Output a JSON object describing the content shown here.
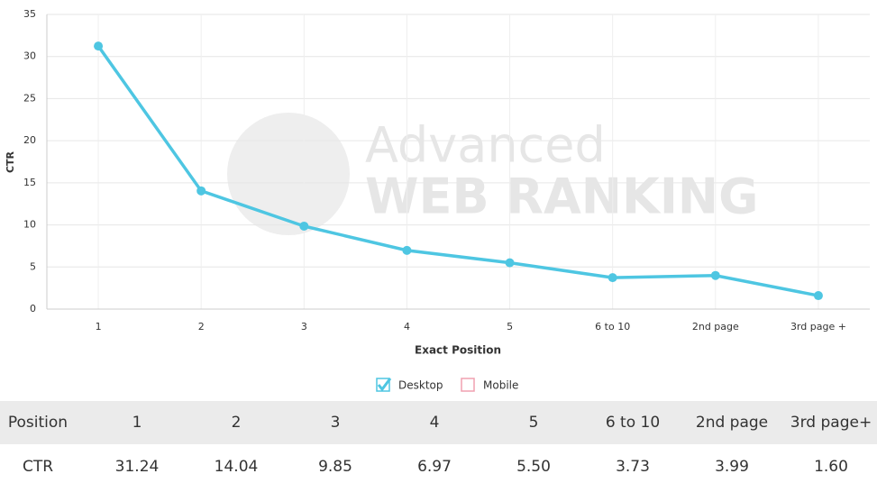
{
  "chart_data": {
    "type": "line",
    "y_label": "CTR",
    "x_label": "Exact Position",
    "watermark": [
      "Advanced",
      "WEB RANKING"
    ],
    "categories": [
      "1",
      "2",
      "3",
      "4",
      "5",
      "6 to 10",
      "2nd page",
      "3rd page +"
    ],
    "series": [
      {
        "name": "Desktop",
        "color": "#4ec6e2",
        "visible": true,
        "values": [
          31.24,
          14.04,
          9.85,
          6.97,
          5.5,
          3.73,
          3.99,
          1.6
        ],
        "value_labels": [
          "31.24",
          "14.04",
          "9.85",
          "6.97",
          "5.50",
          "3.73",
          "3.99",
          "1.60"
        ]
      },
      {
        "name": "Mobile",
        "color": "#f0a0b0",
        "visible": false
      }
    ],
    "ylim": [
      0,
      35
    ],
    "yticks": [
      0,
      5,
      10,
      15,
      20,
      25,
      30,
      35
    ],
    "grid": true
  },
  "table": {
    "header": [
      "Position",
      "1",
      "2",
      "3",
      "4",
      "5",
      "6 to 10",
      "2nd page",
      "3rd page+"
    ],
    "row_label": "CTR"
  }
}
